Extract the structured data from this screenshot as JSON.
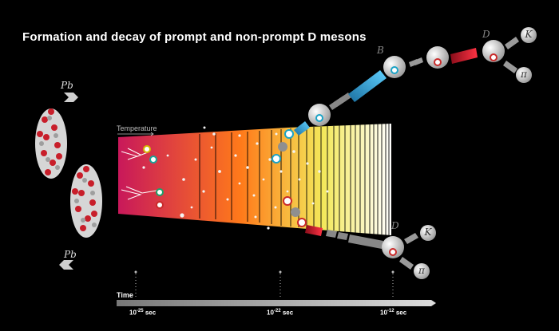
{
  "title": "Formation and decay of prompt and non-prompt D mesons",
  "labels": {
    "temperature": "Temperature",
    "time": "Time",
    "pb_top": "Pb",
    "pb_bottom": "Pb",
    "b_meson": "B",
    "d_top": "D",
    "d_bottom": "D",
    "kaon": "K",
    "pion": "π"
  },
  "timeline": {
    "ticks": [
      {
        "base": "10",
        "exp": "-25",
        "unit": "sec"
      },
      {
        "base": "10",
        "exp": "-22",
        "unit": "sec"
      },
      {
        "base": "10",
        "exp": "-12",
        "unit": "sec"
      }
    ]
  },
  "colors": {
    "plasma_start": "#c8185a",
    "plasma_mid": "#ff7a1a",
    "plasma_end": "#f3e85a",
    "b_track": "#2aa7d6",
    "d_track": "#e1263a",
    "nucleus_red": "#c81e2a",
    "nucleus_grey": "#c8c8c8"
  }
}
